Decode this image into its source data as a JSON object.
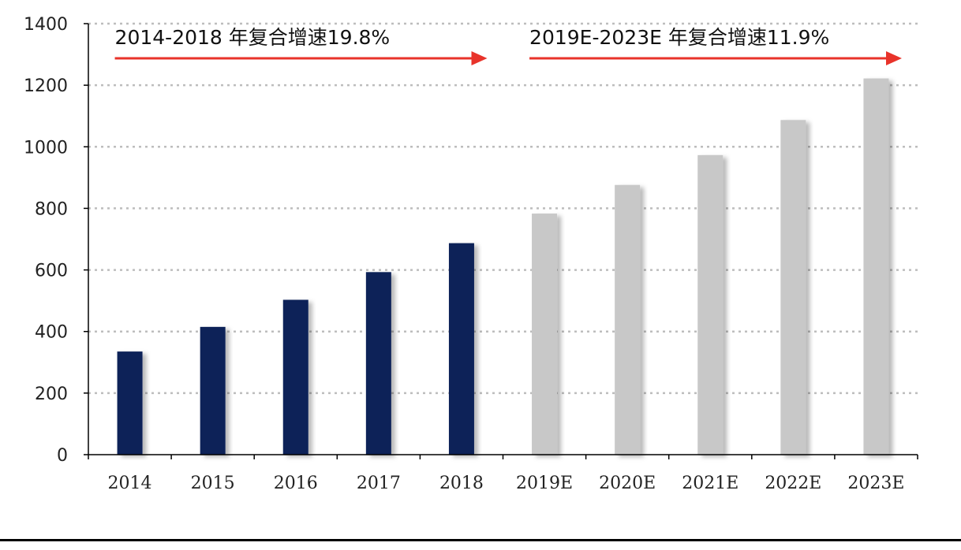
{
  "chart_data": {
    "type": "bar",
    "categories": [
      "2014",
      "2015",
      "2016",
      "2017",
      "2018",
      "2019E",
      "2020E",
      "2021E",
      "2022E",
      "2023E"
    ],
    "values": [
      335,
      415,
      503,
      593,
      687,
      783,
      876,
      973,
      1087,
      1222
    ],
    "title": "",
    "xlabel": "",
    "ylabel": "",
    "ylim": [
      0,
      1400
    ],
    "yticks": [
      0,
      200,
      400,
      600,
      800,
      1000,
      1200,
      1400
    ],
    "grid": true,
    "colors": {
      "actual": "#0a2458",
      "forecast": "#c8c8c8",
      "arrow": "#e8332a",
      "grid": "#bdbdbd"
    },
    "annotations": [
      {
        "text": "2014-2018 年复合增速19.8%",
        "from": "2014",
        "to": "2018"
      },
      {
        "text": "2019E-2023E 年复合增速11.9%",
        "from": "2019E",
        "to": "2023E"
      }
    ]
  }
}
